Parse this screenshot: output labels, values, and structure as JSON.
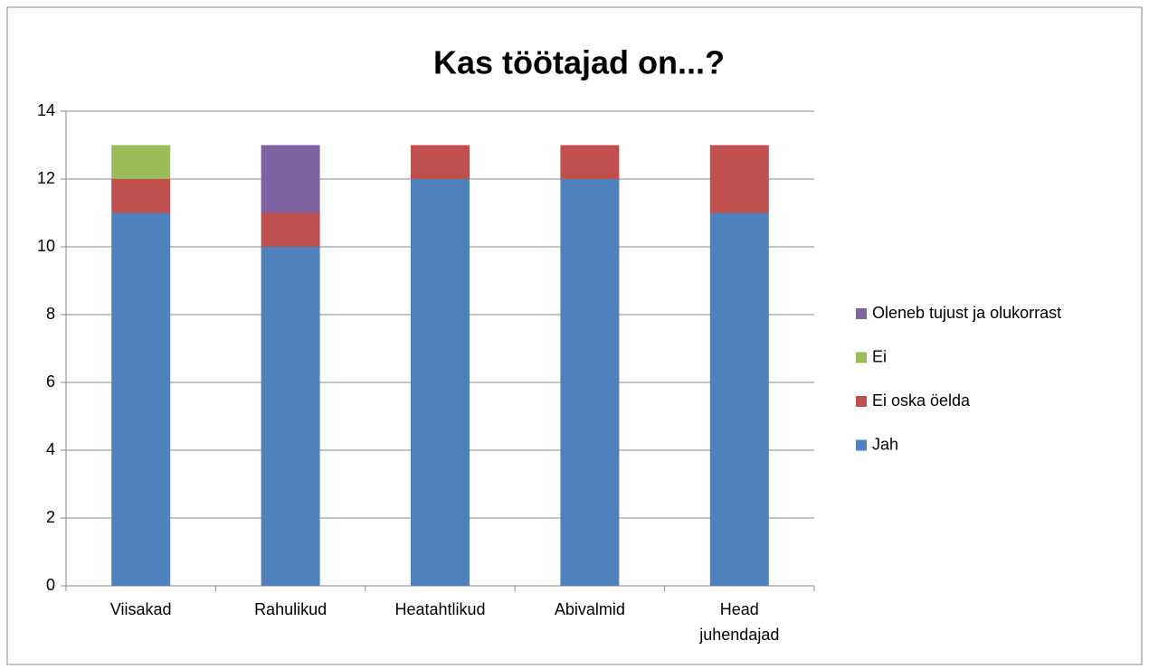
{
  "chart_data": {
    "type": "stacked_bar",
    "title": "Kas töötajad on...?",
    "categories": [
      "Viisakad",
      "Rahulikud",
      "Heatahtlikud",
      "Abivalmid",
      "Head juhendajad"
    ],
    "series": [
      {
        "name": "Jah",
        "color": "#4f81bd",
        "values": [
          11,
          10,
          12,
          12,
          11
        ]
      },
      {
        "name": "Ei oska öelda",
        "color": "#c0504d",
        "values": [
          1,
          1,
          1,
          1,
          2
        ]
      },
      {
        "name": "Ei",
        "color": "#9bbb59",
        "values": [
          1,
          0,
          0,
          0,
          0
        ]
      },
      {
        "name": "Oleneb tujust ja olukorrast",
        "color": "#8064a2",
        "values": [
          0,
          2,
          0,
          0,
          0
        ]
      }
    ],
    "ylim": [
      0,
      14
    ],
    "yticks": [
      0,
      2,
      4,
      6,
      8,
      10,
      12,
      14
    ],
    "grid": true,
    "legend": "right"
  }
}
